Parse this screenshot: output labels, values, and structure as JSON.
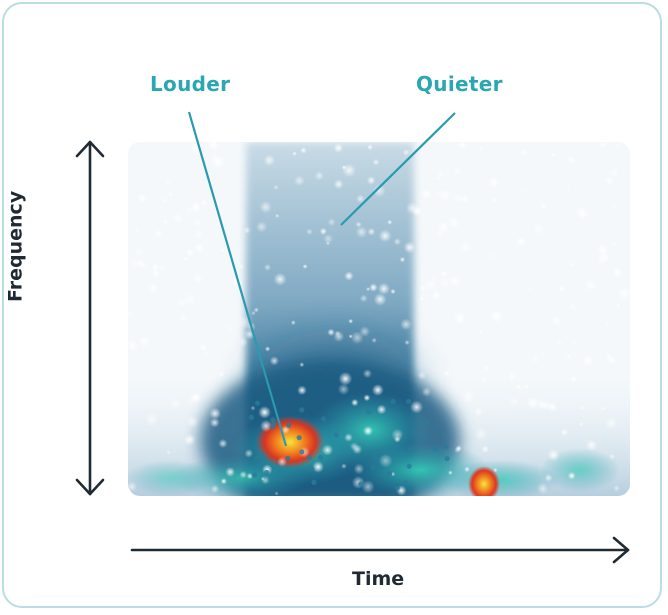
{
  "labels": {
    "louder": "Louder",
    "quieter": "Quieter"
  },
  "axes": {
    "x_label": "Time",
    "y_label": "Frequency"
  },
  "colors": {
    "accent": "#2aa6b4",
    "axis": "#1f2a33",
    "card_border": "#b9dde2",
    "quiet": "#1f5f86",
    "mid": "#2fc3b6",
    "loud": "#e8321c",
    "hot": "#f6e03a"
  }
}
